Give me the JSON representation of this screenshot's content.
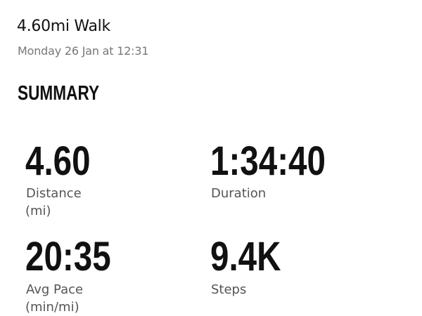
{
  "header": {
    "title": "4.60mi Walk",
    "subtitle": "Monday 26 Jan at 12:31"
  },
  "section_title": "SUMMARY",
  "stats": [
    {
      "value": "4.60",
      "label": "Distance",
      "unit": "(mi)"
    },
    {
      "value": "1:34:40",
      "label": "Duration",
      "unit": ""
    },
    {
      "value": "20:35",
      "label": "Avg Pace",
      "unit": "(min/mi)"
    },
    {
      "value": "9.4K",
      "label": "Steps",
      "unit": ""
    }
  ]
}
